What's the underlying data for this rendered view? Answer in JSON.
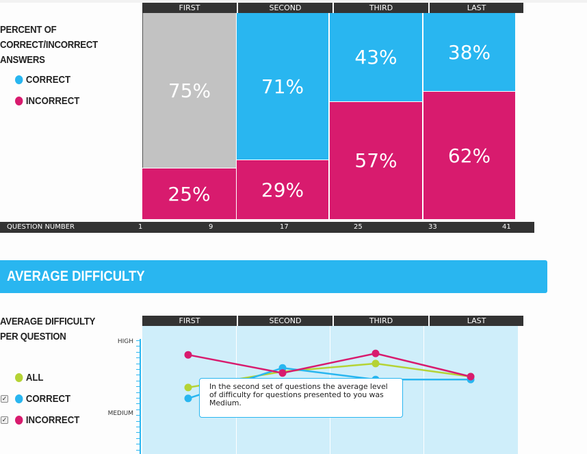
{
  "groups": [
    "FIRST",
    "SECOND",
    "THIRD",
    "LAST"
  ],
  "percent_chart": {
    "title_lines": [
      "PERCENT OF",
      "CORRECT/INCORRECT",
      "ANSWERS"
    ],
    "legend": [
      {
        "label": "CORRECT",
        "color": "#29b6f0"
      },
      {
        "label": "INCORRECT",
        "color": "#d81b6e"
      }
    ],
    "columns": [
      {
        "group": "FIRST",
        "top_label": "75%",
        "top_value": 75,
        "top_color": "#c2c2c2",
        "bottom_label": "25%",
        "bottom_value": 25
      },
      {
        "group": "SECOND",
        "top_label": "71%",
        "top_value": 71,
        "top_color": "#29b6f0",
        "bottom_label": "29%",
        "bottom_value": 29
      },
      {
        "group": "THIRD",
        "top_label": "43%",
        "top_value": 43,
        "top_color": "#29b6f0",
        "bottom_label": "57%",
        "bottom_value": 57
      },
      {
        "group": "LAST",
        "top_label": "38%",
        "top_value": 38,
        "top_color": "#29b6f0",
        "bottom_label": "62%",
        "bottom_value": 62
      }
    ],
    "axis_label": "QUESTION NUMBER",
    "question_numbers": [
      "1",
      "9",
      "17",
      "25",
      "33",
      "41"
    ]
  },
  "section_title": "AVERAGE DIFFICULTY",
  "difficulty_chart": {
    "title_lines": [
      "AVERAGE DIFFICULTY",
      "PER QUESTION"
    ],
    "legend": [
      {
        "label": "ALL",
        "color": "#b5d335",
        "checkbox": false
      },
      {
        "label": "CORRECT",
        "color": "#29b6f0",
        "checkbox": true
      },
      {
        "label": "INCORRECT",
        "color": "#d81b6e",
        "checkbox": true
      }
    ],
    "levels": [
      "HIGH",
      "MEDIUM"
    ],
    "tooltip": "In the second set of questions the average level of difficulty for questions presented to you was Medium."
  },
  "chart_data": {
    "type": "line",
    "title": "AVERAGE DIFFICULTY PER QUESTION",
    "categories": [
      "FIRST",
      "SECOND",
      "THIRD",
      "LAST"
    ],
    "y_scale_note": "1 = MEDIUM, 2 = HIGH",
    "ylim": [
      0.5,
      2.1
    ],
    "series": [
      {
        "name": "ALL",
        "color": "#b5d335",
        "values": [
          1.35,
          1.57,
          1.68,
          1.5
        ]
      },
      {
        "name": "CORRECT",
        "color": "#29b6f0",
        "values": [
          1.2,
          1.62,
          1.46,
          1.46
        ]
      },
      {
        "name": "INCORRECT",
        "color": "#d81b6e",
        "values": [
          1.8,
          1.55,
          1.82,
          1.5
        ]
      }
    ]
  }
}
